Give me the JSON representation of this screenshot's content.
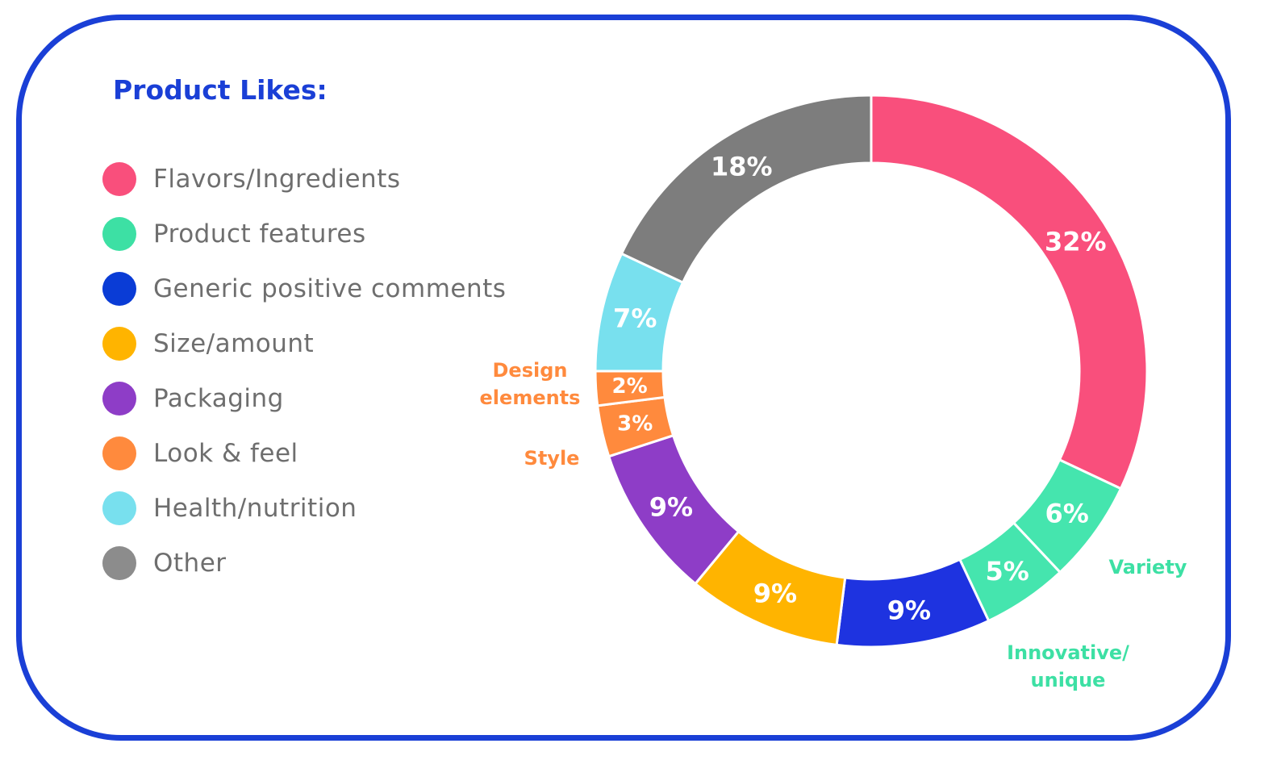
{
  "chart_data": {
    "type": "pie",
    "title": "Product Likes:",
    "categories": [
      "Flavors/Ingredients",
      "Product features",
      "Generic positive comments",
      "Size/amount",
      "Packaging",
      "Look & feel",
      "Health/nutrition",
      "Other"
    ],
    "colors": [
      "#f94f7c",
      "#3de0a4",
      "#0a3cd6",
      "#ffb400",
      "#8e3dc7",
      "#ff8a3d",
      "#78e0ee",
      "#8c8c8c"
    ],
    "slices": [
      {
        "category": "Flavors/Ingredients",
        "value": 32,
        "label": "32%",
        "color": "#f94f7c"
      },
      {
        "category": "Product features",
        "sub_label": "Variety",
        "value": 6,
        "label": "6%",
        "color": "#45e5ae"
      },
      {
        "category": "Product features",
        "sub_label": "Innovative/ unique",
        "value": 5,
        "label": "5%",
        "color": "#45e5ae"
      },
      {
        "category": "Generic positive comments",
        "value": 9,
        "label": "9%",
        "color": "#1e33e0"
      },
      {
        "category": "Size/amount",
        "value": 9,
        "label": "9%",
        "color": "#ffb400"
      },
      {
        "category": "Packaging",
        "value": 9,
        "label": "9%",
        "color": "#8e3dc7"
      },
      {
        "category": "Look & feel",
        "sub_label": "Style",
        "value": 3,
        "label": "3%",
        "color": "#ff8a3d"
      },
      {
        "category": "Look & feel",
        "sub_label": "Design elements",
        "value": 2,
        "label": "2%",
        "color": "#ff8a3d"
      },
      {
        "category": "Health/nutrition",
        "value": 7,
        "label": "7%",
        "color": "#78e0ee"
      },
      {
        "category": "Other",
        "value": 18,
        "label": "18%",
        "color": "#7d7d7d"
      }
    ],
    "sub_labels": {
      "variety": "Variety",
      "innovative_line1": "Innovative/",
      "innovative_line2": "unique",
      "design_line1": "Design",
      "design_line2": "elements",
      "style": "Style"
    },
    "sub_label_colors": {
      "product_features": "#3de0a4",
      "look_and_feel": "#ff8a3d"
    },
    "donut": true,
    "legend": "left"
  }
}
